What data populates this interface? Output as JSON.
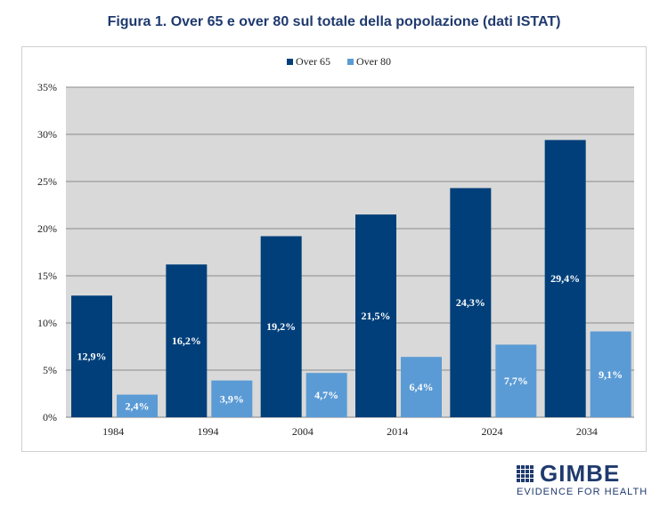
{
  "figure": {
    "title": "Figura 1. Over 65 e over 80 sul totale della popolazione (dati ISTAT)"
  },
  "chart_data": {
    "type": "bar",
    "categories": [
      "1984",
      "1994",
      "2004",
      "2014",
      "2024",
      "2034"
    ],
    "series": [
      {
        "name": "Over 65",
        "color": "#003f7a",
        "values": [
          12.9,
          16.2,
          19.2,
          21.5,
          24.3,
          29.4
        ],
        "labels": [
          "12,9%",
          "16,2%",
          "19,2%",
          "21,5%",
          "24,3%",
          "29,4%"
        ]
      },
      {
        "name": "Over 80",
        "color": "#5b9bd5",
        "values": [
          2.4,
          3.9,
          4.7,
          6.4,
          7.7,
          9.1
        ],
        "labels": [
          "2,4%",
          "3,9%",
          "4,7%",
          "6,4%",
          "7,7%",
          "9,1%"
        ]
      }
    ],
    "ylim": [
      0,
      35
    ],
    "yticks": [
      0,
      5,
      10,
      15,
      20,
      25,
      30,
      35
    ],
    "ytick_labels": [
      "0%",
      "5%",
      "10%",
      "15%",
      "20%",
      "25%",
      "30%",
      "35%"
    ],
    "grid": true,
    "plot_background": "#d9d9d9",
    "legend_position": "top"
  },
  "logo": {
    "name": "GIMBE",
    "tagline": "EVIDENCE FOR HEALTH"
  }
}
